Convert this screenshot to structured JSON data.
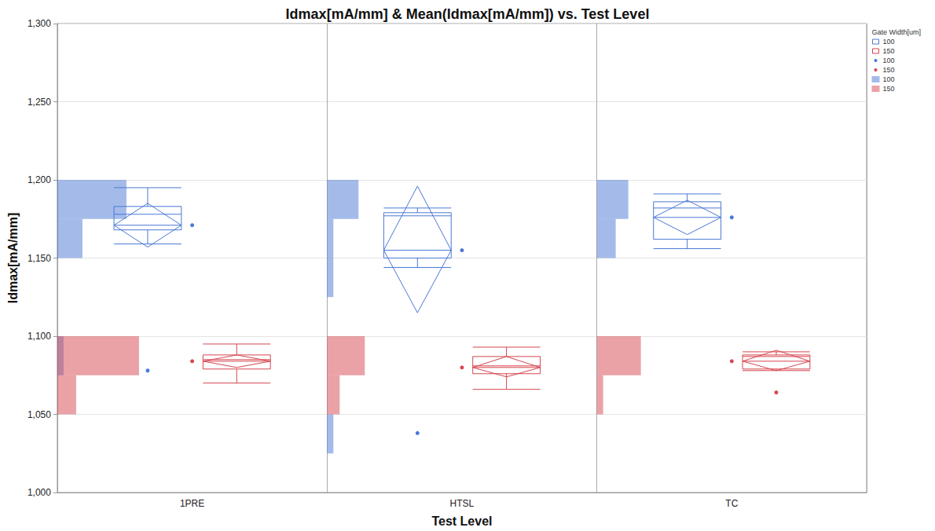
{
  "chart_data": {
    "type": "boxplot",
    "title": "Idmax[mA/mm] & Mean(Idmax[mA/mm]) vs. Test Level",
    "x_label": "Test Level",
    "y_label": "Idmax[mA/mm]",
    "categories": [
      "1PRE",
      "HTSL",
      "TC"
    ],
    "ylim": [
      1000,
      1300
    ],
    "yticks": [
      1000,
      1050,
      1100,
      1150,
      1200,
      1250,
      1300
    ],
    "grid": true,
    "legend": "top-right",
    "legend_title": "Gate Width[um]",
    "bins": [
      1025,
      1050,
      1075,
      1100,
      1125,
      1150,
      1175,
      1200
    ],
    "series": [
      {
        "name": "100",
        "color": "#4a78d6",
        "groups": [
          {
            "min": 1159,
            "q1": 1168,
            "median": 1178,
            "q3": 1183,
            "max": 1195,
            "mean": 1171,
            "mean_lower": 1157,
            "mean_upper": 1185,
            "outliers": [
              1078
            ],
            "counts": [
              0,
              0,
              1,
              0,
              0,
              4,
              11
            ]
          },
          {
            "min": 1144,
            "q1": 1150,
            "median": 1177,
            "q3": 1179,
            "max": 1182,
            "mean": 1155,
            "mean_lower": 1115,
            "mean_upper": 1196,
            "outliers": [
              1038
            ],
            "counts": [
              1,
              0,
              0,
              0,
              1,
              1,
              5
            ]
          },
          {
            "min": 1156,
            "q1": 1162,
            "median": 1182,
            "q3": 1186,
            "max": 1191,
            "mean": 1176,
            "mean_lower": 1165,
            "mean_upper": 1187,
            "outliers": [],
            "counts": [
              0,
              0,
              0,
              0,
              0,
              3,
              5
            ]
          }
        ]
      },
      {
        "name": "150",
        "color": "#d6454f",
        "groups": [
          {
            "min": 1070,
            "q1": 1079,
            "median": 1085,
            "q3": 1088,
            "max": 1095,
            "mean": 1084,
            "mean_lower": 1080,
            "mean_upper": 1088,
            "outliers": [],
            "counts": [
              0,
              3,
              13,
              0,
              0,
              0,
              0
            ]
          },
          {
            "min": 1066,
            "q1": 1076,
            "median": 1081,
            "q3": 1087,
            "max": 1093,
            "mean": 1080,
            "mean_lower": 1074,
            "mean_upper": 1087,
            "outliers": [],
            "counts": [
              0,
              2,
              6,
              0,
              0,
              0,
              0
            ]
          },
          {
            "min": 1078,
            "q1": 1079,
            "median": 1087,
            "q3": 1088,
            "max": 1090,
            "mean": 1084,
            "mean_lower": 1078,
            "mean_upper": 1091,
            "outliers": [
              1064
            ],
            "counts": [
              0,
              1,
              7,
              0,
              0,
              0,
              0
            ]
          }
        ]
      }
    ]
  }
}
